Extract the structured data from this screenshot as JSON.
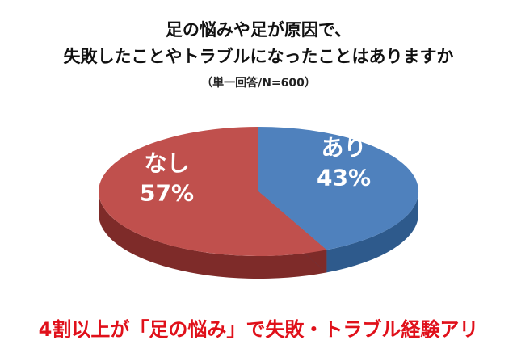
{
  "header": {
    "title_line1": "足の悩みや足が原因で、",
    "title_line2": "失敗したことやトラブルになったことはありますか",
    "subtitle": "（単一回答/N=600）"
  },
  "footer": {
    "message": "4割以上が「足の悩み」で失敗・トラブル経験アリ"
  },
  "colors": {
    "ari_top": "#4f81bd",
    "ari_side": "#2e5a8c",
    "nashi_top": "#c0504d",
    "nashi_side": "#7e2b29",
    "label": "#ffffff"
  },
  "chart_data": {
    "type": "pie",
    "style": "3d",
    "title": "足の悩みや足が原因で、失敗したことやトラブルになったことはありますか",
    "subtitle": "（単一回答/N=600）",
    "n": 600,
    "slices": [
      {
        "label": "あり",
        "value": 43,
        "value_label": "43%"
      },
      {
        "label": "なし",
        "value": 57,
        "value_label": "57%"
      }
    ]
  }
}
